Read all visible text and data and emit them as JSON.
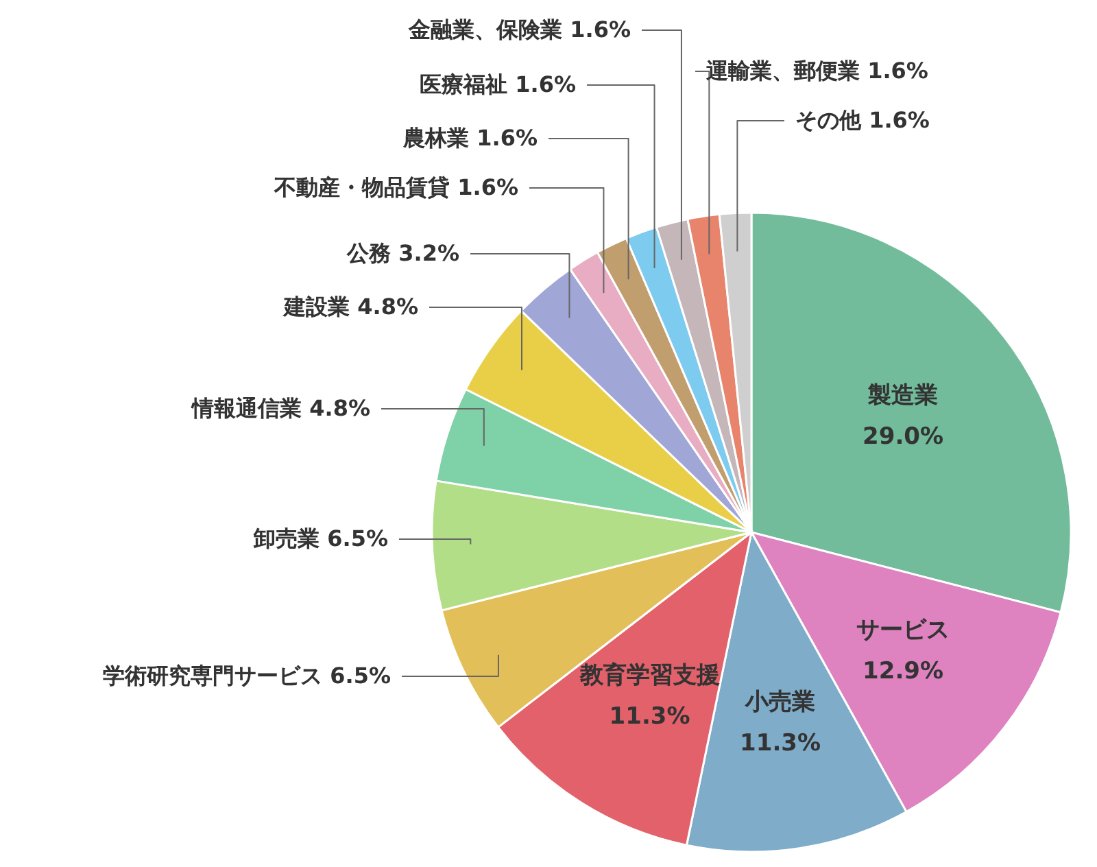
{
  "chart_data": {
    "type": "pie",
    "categories": [
      "製造業",
      "サービス",
      "小売業",
      "教育学習支援",
      "学術研究専門サービス",
      "卸売業",
      "情報通信業",
      "建設業",
      "公務",
      "不動産・物品賃貸",
      "農林業",
      "医療福祉",
      "金融業、保険業",
      "運輸業、郵便業",
      "その他"
    ],
    "values": [
      29.0,
      12.9,
      11.3,
      11.3,
      6.5,
      6.5,
      4.8,
      4.8,
      3.2,
      1.6,
      1.6,
      1.6,
      1.6,
      1.6,
      1.6
    ],
    "value_labels": [
      "29.0%",
      "12.9%",
      "11.3%",
      "11.3%",
      "6.5%",
      "6.5%",
      "4.8%",
      "4.8%",
      "3.2%",
      "1.6%",
      "1.6%",
      "1.6%",
      "1.6%",
      "1.6%",
      "1.6%"
    ],
    "colors": [
      "#72bc9c",
      "#de82c0",
      "#7facc9",
      "#e3616a",
      "#e3bf5a",
      "#b2de87",
      "#7fd1a8",
      "#e9cf48",
      "#a0a6d6",
      "#e8adc3",
      "#c19e6e",
      "#7dcbef",
      "#c4b6b9",
      "#e8836c",
      "#cfcfcf"
    ],
    "legend": false
  }
}
